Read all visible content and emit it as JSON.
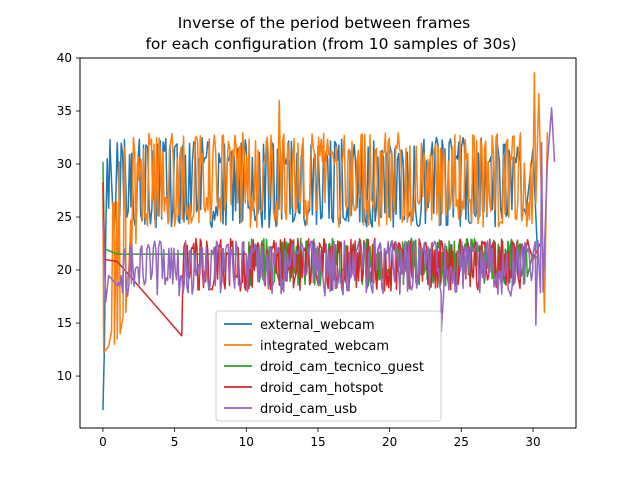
{
  "chart_data": {
    "type": "line",
    "title_line1": "Inverse of the period between frames",
    "title_line2": "for each configuration (from 10 samples of 30s)",
    "xlabel": "",
    "ylabel": "",
    "xlim": [
      -1.6,
      33.0
    ],
    "ylim": [
      5.1,
      40.0
    ],
    "xticks": [
      0,
      5,
      10,
      15,
      20,
      25,
      30
    ],
    "xtick_labels": [
      "0",
      "5",
      "10",
      "15",
      "20",
      "25",
      "30"
    ],
    "yticks": [
      10,
      15,
      20,
      25,
      30,
      35,
      40
    ],
    "ytick_labels": [
      "10",
      "15",
      "20",
      "25",
      "30",
      "35",
      "40"
    ],
    "grid": false,
    "legend_position": "lower-center",
    "series": [
      {
        "name": "external_webcam",
        "color": "#1f77b4",
        "x_start": 0.0,
        "x_end": 30.3,
        "samples": 300,
        "low_band": [
          24,
          26
        ],
        "high_band": [
          30,
          32.5
        ],
        "points": [
          [
            0.0,
            6.8
          ],
          [
            0.1,
            12.5
          ],
          [
            0.2,
            24.0
          ],
          [
            0.3,
            30.5
          ],
          [
            0.5,
            31.5
          ],
          [
            1.0,
            32.0
          ],
          [
            1.5,
            32.3
          ],
          [
            2.0,
            31.0
          ],
          [
            3.0,
            31.8
          ],
          [
            5.0,
            31.6
          ],
          [
            10.0,
            31.5
          ],
          [
            15.0,
            31.7
          ],
          [
            20.0,
            31.8
          ],
          [
            25.0,
            31.5
          ],
          [
            30.0,
            31.4
          ],
          [
            30.3,
            22.0
          ]
        ]
      },
      {
        "name": "integrated_webcam",
        "color": "#ff7f0e",
        "x_start": 0.0,
        "x_end": 31.0,
        "samples": 330,
        "low_band": [
          24,
          27
        ],
        "high_band": [
          30,
          33
        ],
        "points": [
          [
            0.0,
            28.3
          ],
          [
            0.05,
            12.2
          ],
          [
            0.4,
            12.8
          ],
          [
            0.6,
            14.2
          ],
          [
            0.8,
            13.0
          ],
          [
            1.0,
            13.5
          ],
          [
            1.2,
            14.0
          ],
          [
            1.3,
            14.8
          ],
          [
            1.4,
            15.5
          ],
          [
            1.6,
            16.0
          ],
          [
            1.7,
            19.0
          ],
          [
            1.8,
            20.0
          ],
          [
            2.0,
            21.0
          ],
          [
            2.3,
            22.5
          ],
          [
            2.5,
            28.5
          ],
          [
            12.3,
            36.0
          ],
          [
            29.0,
            31.0
          ],
          [
            30.1,
            38.6
          ],
          [
            30.4,
            36.6
          ],
          [
            30.8,
            16.0
          ],
          [
            31.0,
            33.0
          ]
        ]
      },
      {
        "name": "droid_cam_tecnico_guest",
        "color": "#2ca02c",
        "x_start": 0.0,
        "x_end": 30.4,
        "samples": 320,
        "low_band": [
          18.5,
          20.5
        ],
        "high_band": [
          21.5,
          23
        ],
        "points": [
          [
            0.0,
            30.2
          ],
          [
            0.1,
            22.0
          ],
          [
            1.0,
            21.5
          ],
          [
            10.0,
            21.5
          ],
          [
            20.0,
            21.8
          ],
          [
            30.0,
            21.5
          ],
          [
            30.4,
            21.0
          ]
        ]
      },
      {
        "name": "droid_cam_hotspot",
        "color": "#d62728",
        "x_start": 0.0,
        "x_end": 30.5,
        "samples": 320,
        "low_band": [
          18,
          20
        ],
        "high_band": [
          21.5,
          23
        ],
        "points": [
          [
            0.0,
            28.3
          ],
          [
            0.1,
            21.0
          ],
          [
            1.0,
            20.8
          ],
          [
            5.5,
            13.8
          ],
          [
            10.0,
            21.0
          ],
          [
            20.0,
            21.2
          ],
          [
            30.0,
            21.0
          ],
          [
            30.5,
            22.5
          ]
        ]
      },
      {
        "name": "droid_cam_usb",
        "color": "#9467bd",
        "x_start": 0.0,
        "x_end": 31.5,
        "samples": 330,
        "low_band": [
          17.5,
          20.5
        ],
        "high_band": [
          21.5,
          22.8
        ],
        "points": [
          [
            0.0,
            24.8
          ],
          [
            0.2,
            17.0
          ],
          [
            0.4,
            19.5
          ],
          [
            1.0,
            18.5
          ],
          [
            2.0,
            22.5
          ],
          [
            10.0,
            21.5
          ],
          [
            20.0,
            21.8
          ],
          [
            23.6,
            14.2
          ],
          [
            30.0,
            21.5
          ],
          [
            30.2,
            14.8
          ],
          [
            30.6,
            32.0
          ],
          [
            31.0,
            30.0
          ],
          [
            31.3,
            35.3
          ],
          [
            31.5,
            30.2
          ]
        ]
      }
    ]
  }
}
